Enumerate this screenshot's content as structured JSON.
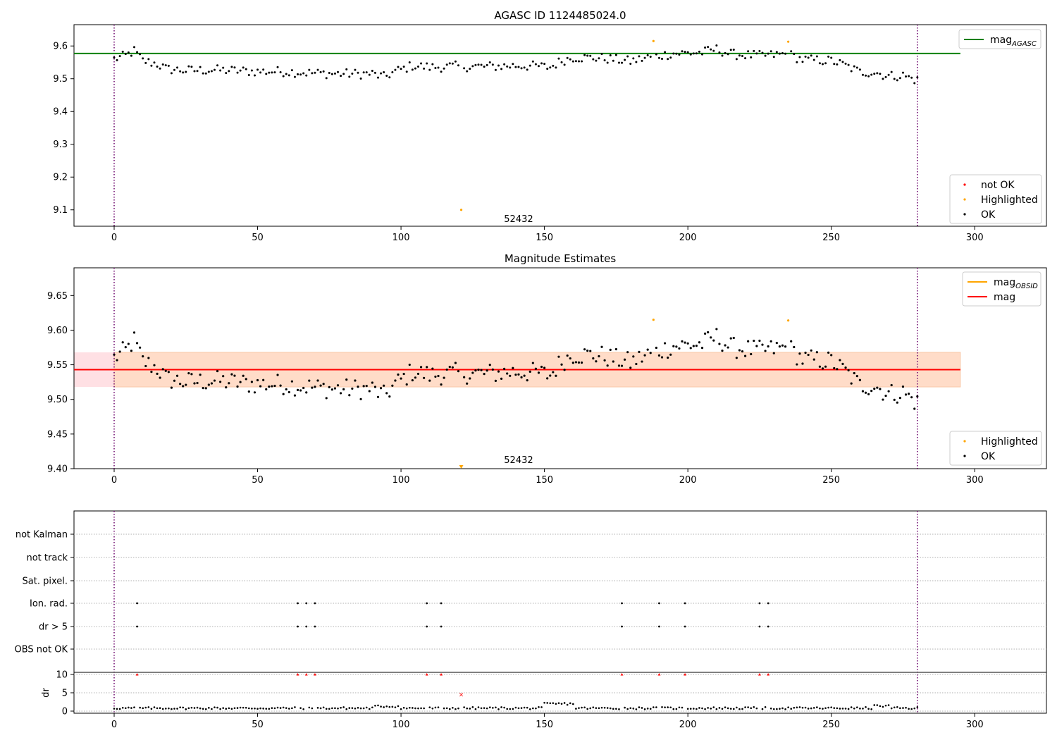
{
  "chart_data": [
    {
      "type": "scatter",
      "title": "AGASC ID 1124485024.0",
      "xlim": [
        -14,
        325
      ],
      "ylim": [
        9.05,
        9.665
      ],
      "xticks": [
        0,
        50,
        100,
        150,
        200,
        250,
        300
      ],
      "yticks": [
        9.1,
        9.2,
        9.3,
        9.4,
        9.5,
        9.6
      ],
      "vlines": [
        0,
        280
      ],
      "hline": {
        "name": "mag_AGASC",
        "y": 9.577,
        "x_range": [
          -14,
          295
        ],
        "color": "#008000"
      },
      "highlighted": [
        [
          121,
          9.1
        ],
        [
          188,
          9.615
        ],
        [
          235,
          9.613
        ]
      ],
      "annotation": {
        "text": "52432",
        "x": 141,
        "y": 9.063
      },
      "legend_lines": [
        {
          "label": "mag",
          "sub": "AGASC",
          "color": "#008000"
        }
      ],
      "legend_points": [
        {
          "label": "not OK",
          "color": "#ff0000"
        },
        {
          "label": "Highlighted",
          "color": "#ffa500"
        },
        {
          "label": "OK",
          "color": "#000000"
        }
      ]
    },
    {
      "type": "scatter",
      "title": "Magnitude Estimates",
      "xlim": [
        -14,
        325
      ],
      "ylim": [
        9.4,
        9.69
      ],
      "xticks": [
        0,
        50,
        100,
        150,
        200,
        250,
        300
      ],
      "yticks": [
        9.4,
        9.45,
        9.5,
        9.55,
        9.6,
        9.65
      ],
      "vlines": [
        0,
        280
      ],
      "hline": {
        "name": "mag",
        "y": 9.543,
        "x_range": [
          -14,
          295
        ],
        "color": "#ff0000"
      },
      "band_outer": {
        "y0": 9.518,
        "y1": 9.568,
        "x_range": [
          -14,
          295
        ],
        "color": "#ffe0e4"
      },
      "band_inner": {
        "y0": 9.518,
        "y1": 9.568,
        "x_range": [
          0,
          295
        ],
        "color": "#ffdcc8"
      },
      "highlighted": [
        [
          188,
          9.615
        ],
        [
          235,
          9.614
        ]
      ],
      "offscale_marker": {
        "x": 121,
        "y": 9.402
      },
      "annotation": {
        "text": "52432",
        "x": 141,
        "y": 9.408
      },
      "legend_lines": [
        {
          "label": "mag",
          "sub": "OBSID",
          "color": "#ffa500"
        },
        {
          "label": "mag",
          "sub": "",
          "color": "#ff0000"
        }
      ],
      "legend_points": [
        {
          "label": "Highlighted",
          "color": "#ffa500"
        },
        {
          "label": "OK",
          "color": "#000000"
        }
      ]
    },
    {
      "type": "scatter",
      "title": "",
      "xlim": [
        -14,
        325
      ],
      "xticks": [
        0,
        50,
        100,
        150,
        200,
        250,
        300
      ],
      "vlines": [
        0,
        280
      ],
      "flag_rows": [
        "not Kalman",
        "not track",
        "Sat. pixel.",
        "Ion. rad.",
        "dr > 5",
        "OBS not OK"
      ],
      "flag_points": {
        "Ion. rad.": [
          8,
          64,
          67,
          70,
          109,
          114,
          177,
          190,
          199,
          225,
          228
        ],
        "dr > 5": [
          8,
          64,
          67,
          70,
          109,
          114,
          177,
          190,
          199,
          225,
          228
        ]
      },
      "dr_ylabel": "dr",
      "dr_yticks": [
        0,
        5,
        10
      ],
      "dr_clipped": [
        8,
        64,
        67,
        70,
        109,
        114,
        177,
        190,
        199,
        225,
        228
      ],
      "dr_highlight": [
        121,
        4.5
      ]
    }
  ]
}
